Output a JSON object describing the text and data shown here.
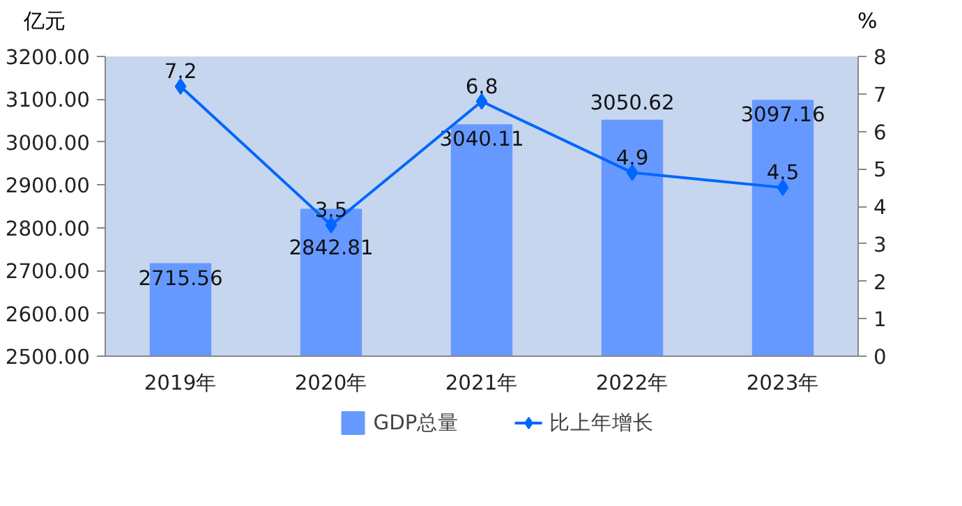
{
  "chart_data": {
    "type": "bar",
    "ylabel": "亿元",
    "y2label": "%",
    "categories": [
      "2019年",
      "2020年",
      "2021年",
      "2022年",
      "2023年"
    ],
    "series": [
      {
        "name": "GDP总量",
        "color": "#6699ff",
        "values": [
          2715.56,
          2842.81,
          3040.11,
          3050.62,
          3097.16
        ]
      },
      {
        "name": "比上年增长",
        "type": "line",
        "axis": "y2",
        "color": "#0066ff",
        "values": [
          7.2,
          3.5,
          6.8,
          4.9,
          4.5
        ]
      }
    ],
    "ylim": [
      2500,
      3200
    ],
    "yticks": [
      {
        "value": 2500,
        "label": "2500.00"
      },
      {
        "value": 2600,
        "label": "2600.00"
      },
      {
        "value": 2700,
        "label": "2700.00"
      },
      {
        "value": 2800,
        "label": "2800.00"
      },
      {
        "value": 2900,
        "label": "2900.00"
      },
      {
        "value": 3000,
        "label": "3000.00"
      },
      {
        "value": 3100,
        "label": "3100.00"
      },
      {
        "value": 3200,
        "label": "3200.00"
      }
    ],
    "y2lim": [
      0,
      8
    ],
    "y2ticks": [
      0,
      1,
      2,
      3,
      4,
      5,
      6,
      7,
      8
    ],
    "data_labels": true,
    "legend": "bottom",
    "marker": "diamond",
    "line_style": "solid"
  }
}
